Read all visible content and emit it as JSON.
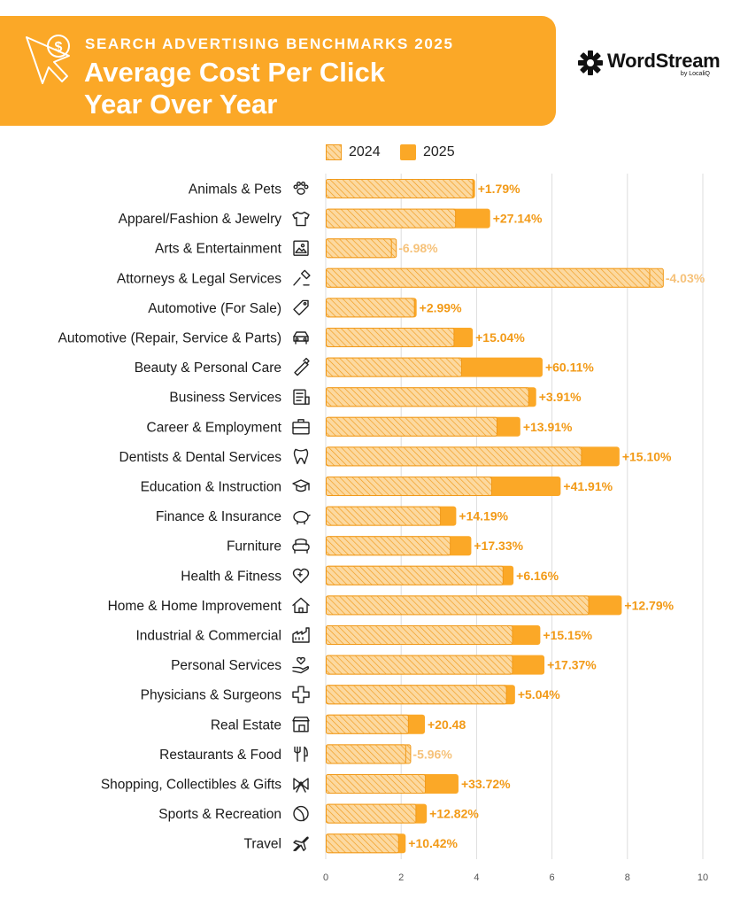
{
  "header": {
    "kicker": "SEARCH ADVERTISING BENCHMARKS 2025",
    "title_line1": "Average Cost Per Click",
    "title_line2": "Year Over Year",
    "icon": "cursor-dollar-icon"
  },
  "brand": {
    "name": "WordStream",
    "sub": "by LocaliQ",
    "icon": "wordstream-logo-icon"
  },
  "colors": {
    "banner": "#FBA827",
    "bar_2025": "#FBA827",
    "bar_2024_fill": "#FCD9A0",
    "bar_2024_hatch": "#F19A1A",
    "positive_label": "#F29A17",
    "negative_label": "#F6C27A",
    "grid": "#DDDDDD"
  },
  "chart_data": {
    "type": "bar",
    "orientation": "horizontal",
    "title": "Average Cost Per Click Year Over Year",
    "xlim": [
      0,
      10
    ],
    "x_ticks": [
      0,
      2,
      4,
      6,
      8,
      10
    ],
    "grid": true,
    "legend_position": "top",
    "series": [
      {
        "name": "2024",
        "style": "hatched"
      },
      {
        "name": "2025",
        "style": "solid"
      }
    ],
    "categories": [
      {
        "label": "Animals & Pets",
        "icon": "paw-icon",
        "v2024": 3.89,
        "v2025": 3.96,
        "change": "+1.79%"
      },
      {
        "label": "Apparel/Fashion & Jewelry",
        "icon": "tshirt-icon",
        "v2024": 3.43,
        "v2025": 4.36,
        "change": "+27.14%"
      },
      {
        "label": "Arts & Entertainment",
        "icon": "picture-icon",
        "v2024": 1.86,
        "v2025": 1.73,
        "change": "-6.98%"
      },
      {
        "label": "Attorneys & Legal Services",
        "icon": "gavel-icon",
        "v2024": 8.94,
        "v2025": 8.58,
        "change": "-4.03%"
      },
      {
        "label": "Automotive (For Sale)",
        "icon": "price-tag-icon",
        "v2024": 2.34,
        "v2025": 2.41,
        "change": "+2.99%"
      },
      {
        "label": "Automotive (Repair, Service & Parts)",
        "icon": "car-icon",
        "v2024": 3.39,
        "v2025": 3.9,
        "change": "+15.04%"
      },
      {
        "label": "Beauty & Personal Care",
        "icon": "comb-icon",
        "v2024": 3.59,
        "v2025": 5.75,
        "change": "+60.11%"
      },
      {
        "label": "Business Services",
        "icon": "document-icon",
        "v2024": 5.37,
        "v2025": 5.58,
        "change": "+3.91%"
      },
      {
        "label": "Career & Employment",
        "icon": "briefcase-icon",
        "v2024": 4.53,
        "v2025": 5.16,
        "change": "+13.91%"
      },
      {
        "label": "Dentists & Dental Services",
        "icon": "tooth-icon",
        "v2024": 6.77,
        "v2025": 7.79,
        "change": "+15.10%"
      },
      {
        "label": "Education & Instruction",
        "icon": "graduation-cap-icon",
        "v2024": 4.39,
        "v2025": 6.23,
        "change": "+41.91%"
      },
      {
        "label": "Finance & Insurance",
        "icon": "piggy-bank-icon",
        "v2024": 3.03,
        "v2025": 3.46,
        "change": "+14.19%"
      },
      {
        "label": "Furniture",
        "icon": "armchair-icon",
        "v2024": 3.29,
        "v2025": 3.86,
        "change": "+17.33%"
      },
      {
        "label": "Health & Fitness",
        "icon": "heart-plus-icon",
        "v2024": 4.69,
        "v2025": 4.98,
        "change": "+6.16%"
      },
      {
        "label": "Home & Home Improvement",
        "icon": "house-icon",
        "v2024": 6.96,
        "v2025": 7.85,
        "change": "+12.79%"
      },
      {
        "label": "Industrial & Commercial",
        "icon": "factory-icon",
        "v2024": 4.94,
        "v2025": 5.69,
        "change": "+15.15%"
      },
      {
        "label": "Personal Services",
        "icon": "hand-heart-icon",
        "v2024": 4.94,
        "v2025": 5.8,
        "change": "+17.37%"
      },
      {
        "label": "Physicians & Surgeons",
        "icon": "medical-cross-icon",
        "v2024": 4.78,
        "v2025": 5.02,
        "change": "+5.04%"
      },
      {
        "label": "Real Estate",
        "icon": "storefront-icon",
        "v2024": 2.18,
        "v2025": 2.63,
        "change": "+20.48"
      },
      {
        "label": "Restaurants & Food",
        "icon": "fork-knife-icon",
        "v2024": 2.24,
        "v2025": 2.11,
        "change": "-5.96%"
      },
      {
        "label": "Shopping, Collectibles & Gifts",
        "icon": "gift-bow-icon",
        "v2024": 2.63,
        "v2025": 3.52,
        "change": "+33.72%"
      },
      {
        "label": "Sports & Recreation",
        "icon": "ball-icon",
        "v2024": 2.38,
        "v2025": 2.68,
        "change": "+12.82%"
      },
      {
        "label": "Travel",
        "icon": "airplane-icon",
        "v2024": 1.92,
        "v2025": 2.12,
        "change": "+10.42%"
      }
    ]
  }
}
